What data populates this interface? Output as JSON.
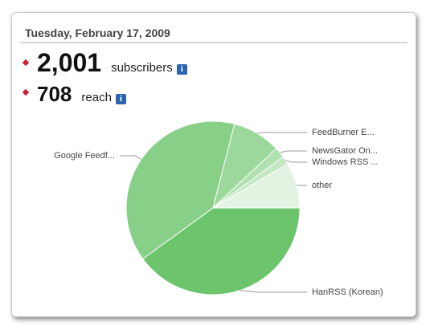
{
  "header": {
    "date": "Tuesday, February 17, 2009"
  },
  "stats": [
    {
      "value": "2,001",
      "label": "subscribers"
    },
    {
      "value": "708",
      "label": "reach"
    }
  ],
  "chart_data": {
    "type": "pie",
    "categories": [
      "HanRSS (Korean)",
      "Google Feedf...",
      "FeedBurner E...",
      "NewsGator On...",
      "Windows RSS ...",
      "other"
    ],
    "values": [
      40,
      39,
      9,
      2,
      1.5,
      8.5
    ],
    "colors": [
      "#6cc46c",
      "#88d088",
      "#9cd89c",
      "#b0e0b0",
      "#c4e8c4",
      "#e2f3e2"
    ]
  }
}
